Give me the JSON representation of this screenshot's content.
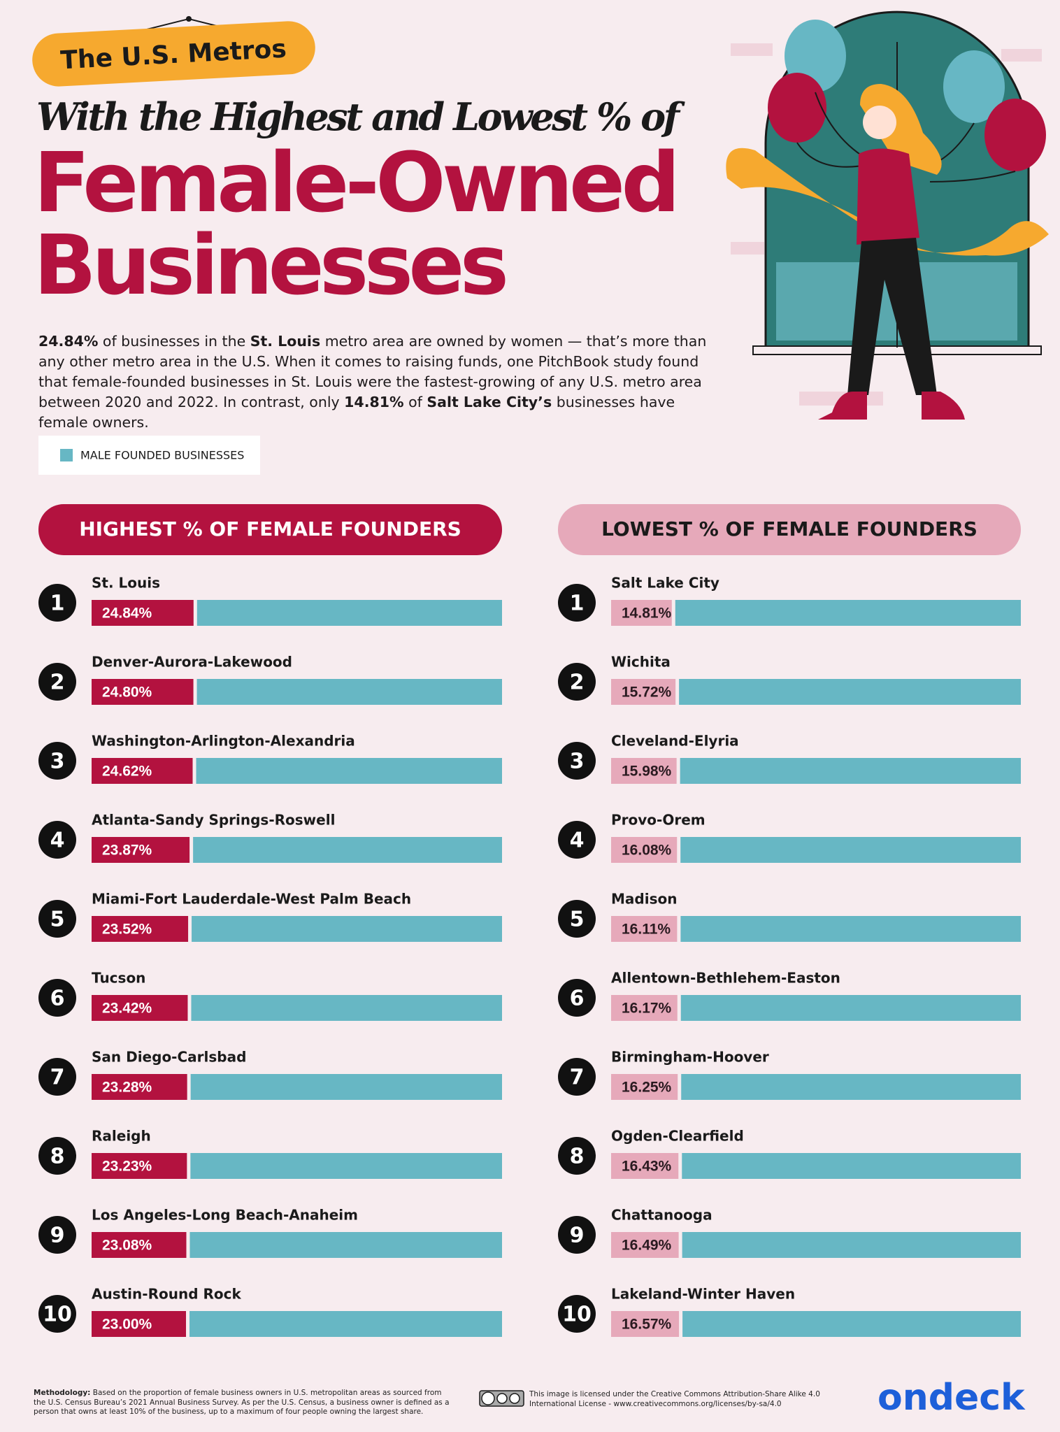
{
  "header": {
    "kicker": "The U.S. Metros",
    "subtitle": "With the Highest and Lowest % of",
    "title_line1": "Female-Owned",
    "title_line2": "Businesses"
  },
  "intro": [
    {
      "text": "24.84%",
      "bold": true
    },
    {
      "text": " of businesses in the ",
      "bold": false
    },
    {
      "text": "St. Louis",
      "bold": true
    },
    {
      "text": " metro area are owned by women — that’s more than any other metro area in the U.S. When it comes to raising funds, one PitchBook study found that female-founded businesses in St. Louis were the fastest-growing of any U.S. metro area between 2020 and 2022. In contrast, only ",
      "bold": false
    },
    {
      "text": "14.81%",
      "bold": true
    },
    {
      "text": " of ",
      "bold": false
    },
    {
      "text": "Salt Lake City’s",
      "bold": true
    },
    {
      "text": " businesses have female owners.",
      "bold": false
    }
  ],
  "legend": {
    "label": "MALE FOUNDED BUSINESSES",
    "color": "#67b7c4"
  },
  "chart_data": [
    {
      "type": "bar",
      "title": "HIGHEST % OF FEMALE FOUNDERS",
      "title_color": "#ffffff",
      "color": "#b3123f",
      "label_color": "#ffffff",
      "ranks": [
        1,
        2,
        3,
        4,
        5,
        6,
        7,
        8,
        9,
        10
      ],
      "categories": [
        "St. Louis",
        "Denver-Aurora-Lakewood",
        "Washington-Arlington-Alexandria",
        "Atlanta-Sandy Springs-Roswell",
        "Miami-Fort Lauderdale-West Palm Beach",
        "Tucson",
        "San Diego-Carlsbad",
        "Raleigh",
        "Los Angeles-Long Beach-Anaheim",
        "Austin-Round Rock"
      ],
      "values": [
        24.84,
        24.8,
        24.62,
        23.87,
        23.52,
        23.42,
        23.28,
        23.23,
        23.08,
        23.0
      ],
      "value_labels": [
        "24.84%",
        "24.80%",
        "24.62%",
        "23.87%",
        "23.52%",
        "23.42%",
        "23.28%",
        "23.23%",
        "23.08%",
        "23.00%"
      ],
      "xlim": [
        0,
        100
      ]
    },
    {
      "type": "bar",
      "title": "LOWEST % OF FEMALE FOUNDERS",
      "title_color": "#1a1a1a",
      "color": "#e6a9ba",
      "label_color": "#2a1a20",
      "ranks": [
        1,
        2,
        3,
        4,
        5,
        6,
        7,
        8,
        9,
        10
      ],
      "categories": [
        "Salt Lake City",
        "Wichita",
        "Cleveland-Elyria",
        "Provo-Orem",
        "Madison",
        "Allentown-Bethlehem-Easton",
        "Birmingham-Hoover",
        "Ogden-Clearfield",
        "Chattanooga",
        "Lakeland-Winter Haven"
      ],
      "values": [
        14.81,
        15.72,
        15.98,
        16.08,
        16.11,
        16.17,
        16.25,
        16.43,
        16.49,
        16.57
      ],
      "value_labels": [
        "14.81%",
        "15.72%",
        "15.98%",
        "16.08%",
        "16.11%",
        "16.17%",
        "16.25%",
        "16.43%",
        "16.49%",
        "16.57%"
      ],
      "xlim": [
        0,
        100
      ]
    }
  ],
  "footer": {
    "methodology_label": "Methodology:",
    "methodology": "Based on the proportion of female business owners in U.S. metropolitan areas as sourced from the U.S. Census Bureau’s 2021 Annual Business Survey. As per the U.S. Census, a business owner is defined as a person that owns at least 10% of the business, up to a maximum of four people owning the largest share.",
    "license": "This image is licensed under the Creative Commons Attribution-Share Alike 4.0 International License - www.creativecommons.org/licenses/by-sa/4.0",
    "logo": "ondeck"
  }
}
